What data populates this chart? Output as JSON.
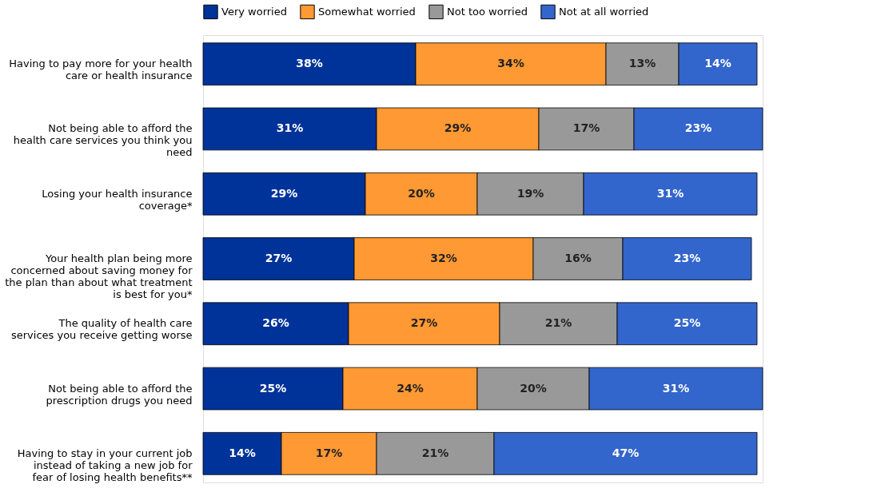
{
  "chart_data": {
    "type": "bar",
    "orientation": "horizontal",
    "stacked": true,
    "legend": "top",
    "grid": false,
    "categories": [
      "Having to pay more for your health care or health insurance",
      "Not being able to afford the health care services you think you need",
      "Losing your health insurance coverage*",
      "Your health plan being more concerned about saving money for the plan than about what treatment is best for you*",
      "The quality of health care services you receive getting worse",
      "Not being able to afford the prescription drugs you need",
      "Having to stay in your current job instead of taking a new job for fear of losing health benefits**"
    ],
    "series": [
      {
        "name": "Very worried",
        "color": "#003399",
        "values": [
          38,
          31,
          29,
          27,
          26,
          25,
          14
        ],
        "value_labels": [
          "38%",
          "31%",
          "29%",
          "27%",
          "26%",
          "25%",
          "14%"
        ]
      },
      {
        "name": "Somewhat worried",
        "color": "#ff9933",
        "values": [
          34,
          29,
          20,
          32,
          27,
          24,
          17
        ],
        "value_labels": [
          "34%",
          "29%",
          "20%",
          "32%",
          "27%",
          "24%",
          "17%"
        ]
      },
      {
        "name": "Not too worried",
        "color": "#999999",
        "values": [
          13,
          17,
          19,
          16,
          21,
          20,
          21
        ],
        "value_labels": [
          "13%",
          "17%",
          "19%",
          "16%",
          "21%",
          "20%",
          "21%"
        ]
      },
      {
        "name": "Not at all worried",
        "color": "#3366cc",
        "values": [
          14,
          23,
          31,
          23,
          25,
          31,
          47
        ],
        "value_labels": [
          "14%",
          "23%",
          "31%",
          "23%",
          "25%",
          "31%",
          "47%"
        ]
      }
    ]
  }
}
